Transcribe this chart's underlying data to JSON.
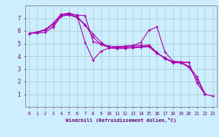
{
  "background_color": "#cceeff",
  "grid_color": "#aacccc",
  "line_color": "#aa00aa",
  "marker_color": "#aa00aa",
  "xlabel": "Windchill (Refroidissement éolien,°C)",
  "xlim": [
    -0.5,
    23.5
  ],
  "ylim": [
    0,
    8
  ],
  "xticks": [
    0,
    1,
    2,
    3,
    4,
    5,
    6,
    7,
    8,
    9,
    10,
    11,
    12,
    13,
    14,
    15,
    16,
    17,
    18,
    19,
    20,
    21,
    22,
    23
  ],
  "yticks": [
    1,
    2,
    3,
    4,
    5,
    6,
    7
  ],
  "series": [
    {
      "x": [
        0,
        1,
        2,
        3,
        4,
        5,
        6,
        7,
        8,
        9,
        10,
        11,
        12,
        13,
        14,
        15,
        16,
        17,
        18,
        19,
        20
      ],
      "y": [
        5.8,
        5.9,
        6.1,
        6.6,
        7.3,
        7.35,
        7.25,
        7.2,
        5.15,
        4.95,
        4.8,
        4.75,
        4.8,
        4.85,
        4.85,
        4.88,
        4.3,
        3.8,
        3.5,
        3.5,
        3.5
      ]
    },
    {
      "x": [
        0,
        1,
        2,
        3,
        4,
        5,
        6,
        7,
        8,
        9,
        10,
        11,
        12,
        13,
        14,
        15,
        16,
        17,
        18,
        19,
        20,
        21,
        22,
        23
      ],
      "y": [
        5.8,
        5.9,
        6.1,
        6.55,
        7.3,
        7.4,
        7.2,
        5.1,
        3.7,
        4.4,
        4.65,
        4.72,
        4.78,
        4.82,
        5.1,
        6.05,
        6.3,
        4.35,
        3.6,
        3.55,
        3.5,
        1.9,
        1.0,
        0.85
      ]
    },
    {
      "x": [
        0,
        1,
        2,
        3,
        4,
        5,
        6,
        7,
        8,
        9,
        10,
        11,
        12,
        13,
        14,
        15,
        16,
        17,
        18,
        19,
        20,
        21,
        22
      ],
      "y": [
        5.8,
        5.85,
        6.05,
        6.4,
        7.2,
        7.3,
        7.1,
        6.5,
        5.5,
        4.9,
        4.7,
        4.65,
        4.68,
        4.72,
        4.76,
        4.8,
        4.25,
        3.85,
        3.55,
        3.52,
        3.2,
        2.4,
        1.05
      ]
    },
    {
      "x": [
        0,
        1,
        2,
        3,
        4,
        5,
        6,
        7,
        8,
        9,
        10,
        11,
        12,
        13,
        14,
        15,
        16,
        17,
        18,
        19,
        20,
        21,
        22
      ],
      "y": [
        5.8,
        5.82,
        5.88,
        6.28,
        7.15,
        7.25,
        7.05,
        6.45,
        5.75,
        5.1,
        4.65,
        4.6,
        4.62,
        4.65,
        4.7,
        4.75,
        4.2,
        3.9,
        3.48,
        3.48,
        3.12,
        2.18,
        1.02
      ]
    }
  ]
}
